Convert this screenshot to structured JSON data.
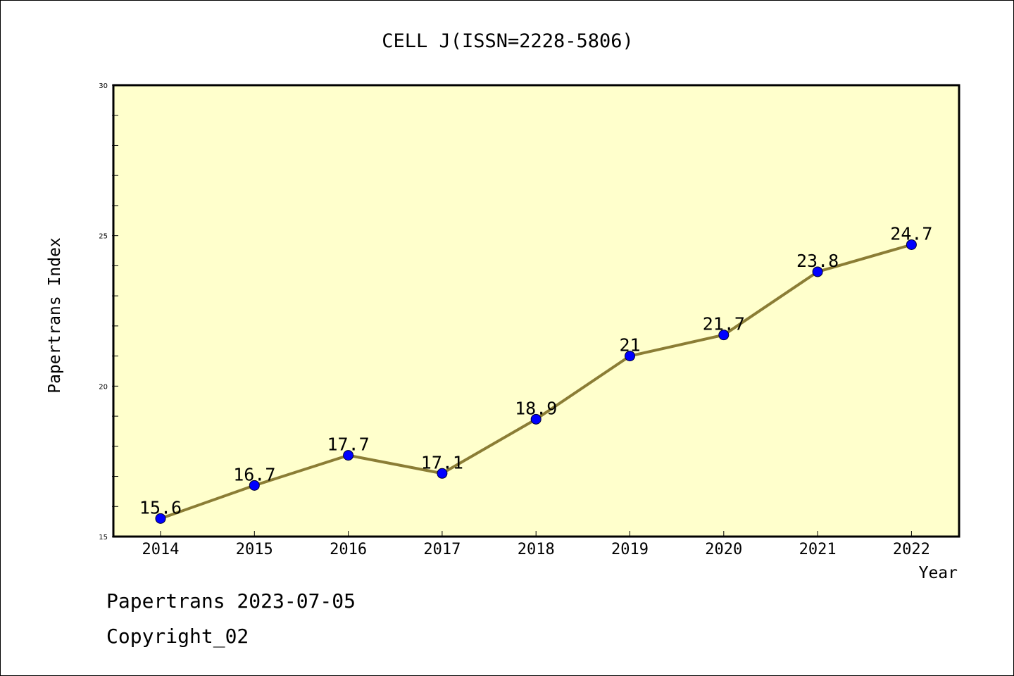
{
  "chart_data": {
    "type": "line",
    "title": "CELL J(ISSN=2228-5806)",
    "xlabel": "Year",
    "ylabel": "Papertrans Index",
    "categories": [
      "2014",
      "2015",
      "2016",
      "2017",
      "2018",
      "2019",
      "2020",
      "2021",
      "2022"
    ],
    "values": [
      15.6,
      16.7,
      17.7,
      17.1,
      18.9,
      21,
      21.7,
      23.8,
      24.7
    ],
    "data_labels": [
      "15.6",
      "16.7",
      "17.7",
      "17.1",
      "18.9",
      "21",
      "21.7",
      "23.8",
      "24.7"
    ],
    "ylim": [
      15,
      30
    ],
    "yticks": [
      "15",
      "20",
      "25",
      "30"
    ],
    "grid": false,
    "legend": "none",
    "colors": {
      "plot_background": "#ffffcc",
      "line": "#8b7d35",
      "marker": "#0000ff"
    }
  },
  "footer": {
    "date_line": "Papertrans 2023-07-05",
    "copyright_line": "Copyright_02"
  }
}
